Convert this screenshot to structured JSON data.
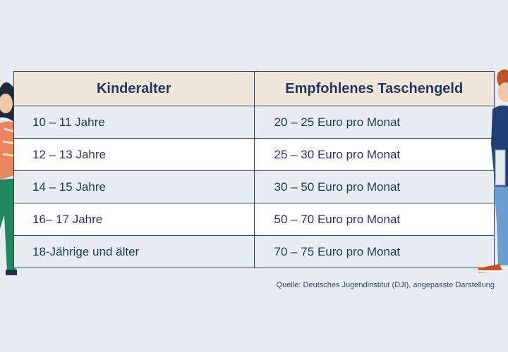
{
  "table": {
    "headers": [
      "Kinderalter",
      "Empfohlenes Taschengeld"
    ],
    "rows": [
      [
        "10 – 11 Jahre",
        "20 – 25 Euro pro Monat"
      ],
      [
        "12 – 13 Jahre",
        "25 – 30 Euro pro Monat"
      ],
      [
        "14 – 15 Jahre",
        "30 – 50 Euro pro Monat"
      ],
      [
        "16– 17 Jahre",
        "50 – 70 Euro pro Monat"
      ],
      [
        "18-Jährige und älter",
        "70 – 75 Euro pro Monat"
      ]
    ]
  },
  "source": "Quelle: Deutsches Jugendinstitut (DJI), angepasste Darstellung",
  "colors": {
    "background": "#e9edf1",
    "header_fill": "#efe5db",
    "border": "#2f4468",
    "text": "#24375b",
    "row_alt": "#e8edf2"
  },
  "illustrations": [
    "girl-figure",
    "boy-figure"
  ]
}
